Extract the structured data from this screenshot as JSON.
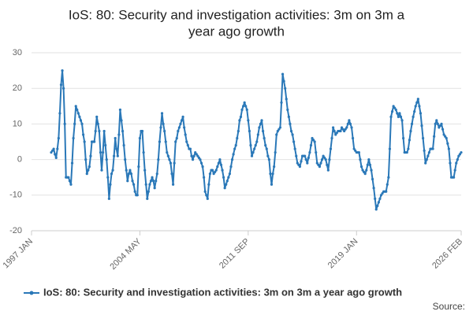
{
  "chart_data": {
    "type": "line",
    "title": [
      "IoS: 80: Security and investigation activities: 3m on 3m a",
      "year ago growth"
    ],
    "source": "Source:",
    "categories": [
      "1997 JAN",
      null,
      null,
      null,
      null,
      null,
      null,
      null,
      null,
      null,
      null,
      null,
      null,
      null,
      null,
      null,
      null,
      null,
      null,
      null,
      null,
      null,
      null,
      null,
      null,
      null,
      null,
      null,
      null,
      null,
      null,
      null,
      null,
      null,
      null,
      null,
      null,
      null,
      null,
      null,
      null,
      null,
      null,
      null,
      null,
      null,
      null,
      null,
      null,
      null,
      null,
      null,
      null,
      null,
      null,
      null,
      null,
      null,
      null,
      null,
      null,
      null,
      null,
      null,
      null,
      null,
      null,
      null,
      null,
      null,
      null,
      null,
      null,
      null,
      null,
      null,
      null,
      null,
      null,
      null,
      null,
      null,
      null,
      null,
      null,
      null,
      null,
      null,
      "2004 MAY",
      null,
      null,
      null,
      null,
      null,
      null,
      null,
      null,
      null,
      null,
      null,
      null,
      null,
      null,
      null,
      null,
      null,
      null,
      null,
      null,
      null,
      null,
      null,
      null,
      null,
      null,
      null,
      null,
      null,
      null,
      null,
      null,
      null,
      null,
      null,
      null,
      null,
      null,
      null,
      null,
      null,
      null,
      null,
      null,
      null,
      null,
      null,
      null,
      null,
      null,
      null,
      null,
      null,
      null,
      null,
      null,
      null,
      null,
      null,
      null,
      null,
      null,
      null,
      null,
      null,
      null,
      null,
      null,
      null,
      null,
      null,
      null,
      null,
      null,
      null,
      null,
      null,
      null,
      null,
      null,
      null,
      null,
      null,
      null,
      null,
      null,
      null,
      "2011 SEP",
      null,
      null,
      null,
      null,
      null,
      null,
      null,
      null,
      null,
      null,
      null,
      null,
      null,
      null,
      null,
      null,
      null,
      null,
      null,
      null,
      null,
      null,
      null,
      null,
      null,
      null,
      null,
      null,
      null,
      null,
      null,
      null,
      null,
      null,
      null,
      null,
      null,
      null,
      null,
      null,
      null,
      null,
      null,
      null,
      null,
      null,
      null,
      null,
      null,
      null,
      null,
      null,
      null,
      null,
      null,
      null,
      null,
      null,
      null,
      null,
      null,
      null,
      null,
      null,
      null,
      null,
      null,
      null,
      null,
      null,
      null,
      null,
      null,
      null,
      null,
      null,
      null,
      null,
      null,
      null,
      null,
      null,
      null,
      null,
      null,
      null,
      null,
      "2019 JAN",
      null,
      null,
      null,
      null,
      null,
      null,
      null,
      null,
      null,
      null,
      null,
      null,
      null,
      null,
      null,
      null,
      null,
      null,
      null,
      null,
      null,
      null,
      null,
      null,
      null,
      null,
      null,
      null,
      null,
      null,
      null,
      null,
      null,
      null,
      null,
      null,
      null,
      null,
      null,
      null,
      null,
      null,
      null,
      null,
      null,
      null,
      null,
      null,
      null,
      null,
      null,
      null,
      null,
      null,
      null,
      null,
      null,
      null,
      null,
      null,
      null,
      null,
      null,
      null,
      null,
      null,
      null,
      null,
      null,
      null,
      null,
      null,
      null,
      null,
      null,
      null,
      null,
      null,
      null,
      null,
      null,
      null,
      null,
      null,
      "2026 FEB"
    ],
    "series": [
      {
        "name": "IoS: 80: Security and investigation activities: 3m on 3m a year ago growth",
        "color": "#2a78b8",
        "values": [
          null,
          null,
          null,
          null,
          null,
          null,
          null,
          null,
          null,
          null,
          null,
          null,
          null,
          null,
          null,
          null,
          2,
          2.5,
          3,
          1.5,
          0.5,
          3,
          6,
          13,
          21,
          25,
          20,
          10,
          -5,
          -5,
          -5,
          -6,
          -7,
          -1,
          6,
          10,
          15,
          14,
          13,
          12,
          11,
          10,
          7,
          5,
          0,
          -4,
          -3,
          -2,
          1,
          5,
          5,
          5,
          8,
          12,
          10,
          8,
          2,
          -3,
          2,
          8,
          4,
          0,
          -5,
          -11,
          -7,
          -4,
          -3,
          1,
          6,
          3,
          1,
          7,
          14,
          11,
          8,
          4,
          0,
          -3,
          -6,
          -4,
          -3,
          -4,
          -6,
          -7,
          -9,
          -10,
          -10,
          -2,
          6,
          8,
          8,
          2,
          -3,
          -7,
          -11,
          -9,
          -7,
          -6,
          -5,
          -6,
          -8,
          -6,
          -4,
          0,
          5,
          9,
          13,
          10,
          8,
          5,
          2,
          1,
          0,
          -1,
          -4,
          -7,
          -1,
          5,
          6,
          8,
          9,
          10,
          11,
          12,
          9,
          7,
          5,
          4,
          3,
          3,
          1,
          0,
          1,
          2,
          1.5,
          1,
          0.5,
          0,
          -1,
          -2,
          -5,
          -9,
          -10,
          -11,
          -7,
          -4,
          -3,
          -3,
          -4,
          -3.5,
          -3,
          -2,
          -1,
          0,
          -1.5,
          -3,
          -5,
          -8,
          -7,
          -6,
          -5,
          -4,
          -2,
          0,
          1.5,
          3,
          4,
          6,
          8,
          11,
          12,
          14,
          15,
          16,
          15,
          14,
          11,
          8,
          4,
          1,
          2,
          3,
          4,
          5,
          7,
          9,
          10,
          11,
          8,
          6,
          4,
          3,
          1,
          0,
          -4,
          -7,
          -4,
          -2,
          2,
          7,
          8,
          8.5,
          9,
          16,
          24,
          22,
          20,
          17,
          14,
          12,
          10,
          8,
          7,
          5,
          3,
          1,
          -1,
          -1.5,
          -2,
          -0.5,
          1,
          1,
          1,
          0,
          -1,
          0.5,
          2,
          4,
          6,
          5.5,
          5,
          2,
          -1,
          -1.5,
          -2,
          -1,
          0,
          1,
          0.5,
          0,
          -1.5,
          -3,
          0,
          3,
          6,
          9,
          8,
          7,
          7.5,
          8,
          8,
          8,
          9,
          8.5,
          8,
          8.5,
          9,
          10,
          11,
          10,
          9,
          6,
          3,
          2.5,
          2,
          2,
          2,
          0,
          -2,
          -3,
          -3.5,
          -4,
          -3,
          -1.5,
          0,
          -1.5,
          -3,
          -5.5,
          -8,
          -11,
          -14,
          -13,
          -12,
          -11,
          -10,
          -9.5,
          -9,
          -9,
          -9,
          -7,
          -5,
          3,
          12,
          13.5,
          15,
          14.5,
          14,
          13,
          12,
          13,
          12,
          11,
          6,
          2,
          2,
          2,
          3,
          5.5,
          8,
          10,
          12,
          13.5,
          15,
          16,
          17,
          15,
          13,
          9.5,
          6,
          2.5,
          -1,
          0,
          1,
          2,
          3,
          3,
          3,
          6.5,
          10,
          11,
          10,
          9,
          9.5,
          10,
          8.5,
          7,
          6.5,
          6,
          4.5,
          3,
          -1,
          -5,
          -5,
          -5,
          -3,
          -1,
          0,
          1,
          1.5,
          2
        ]
      }
    ],
    "ylim": [
      -20,
      30
    ],
    "yticks": [
      -20,
      -10,
      0,
      10,
      20,
      30
    ],
    "grid": true,
    "legend": "bottom"
  }
}
